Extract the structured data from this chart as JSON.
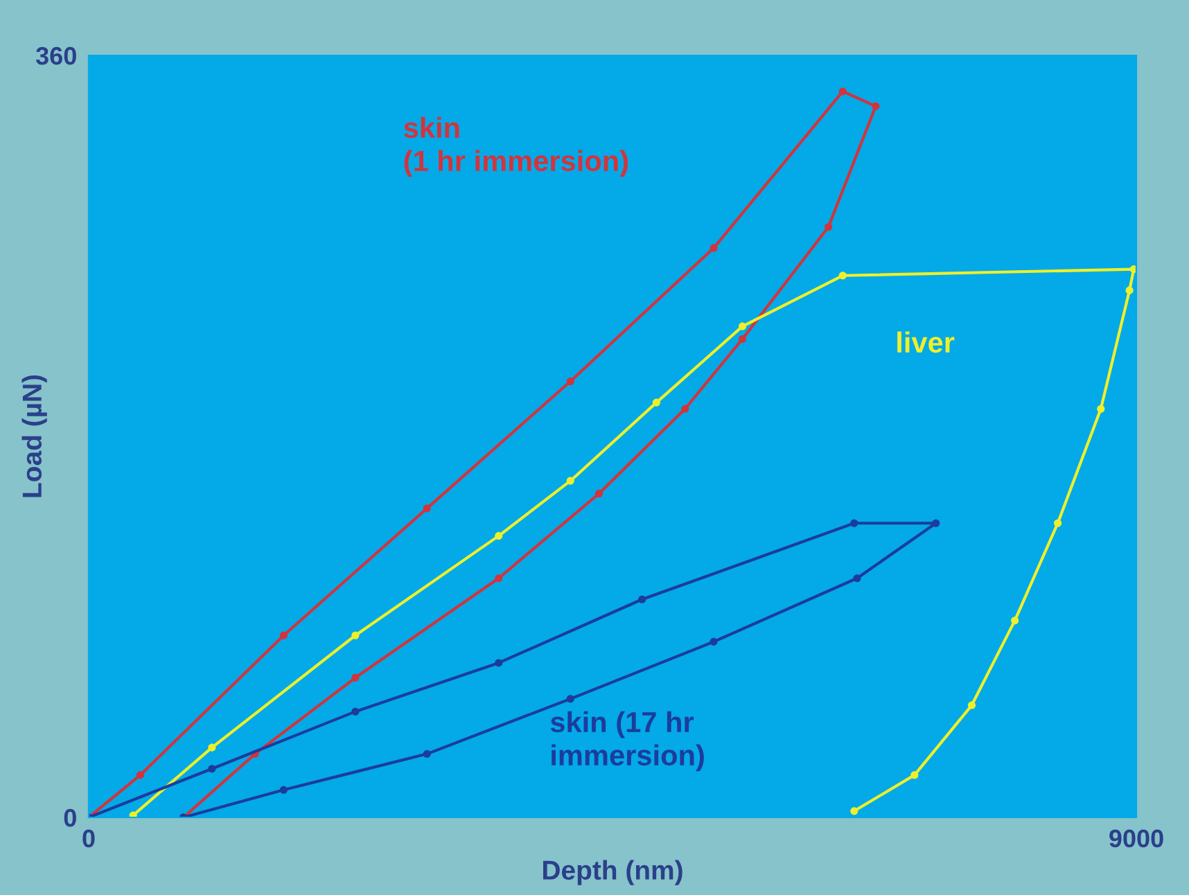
{
  "chart_data": {
    "type": "line",
    "xlabel": "Depth (nm)",
    "ylabel": "Load (µN)",
    "xlim": [
      0,
      9000
    ],
    "ylim": [
      0,
      360
    ],
    "xticks": [
      0,
      9000
    ],
    "yticks": [
      0,
      360
    ],
    "grid": false,
    "legend": false,
    "marker": "circle",
    "line_style": "solid",
    "series": [
      {
        "name": "skin\n(1 hr immersion)",
        "color": "#d2343c",
        "x": [
          0,
          443,
          1675,
          2906,
          4138,
          5369,
          6478,
          6761,
          6355,
          5616,
          5123,
          4384,
          3522,
          2291,
          1429,
          813
        ],
        "values": [
          0,
          20,
          86,
          146,
          206,
          269,
          343,
          336,
          279,
          226,
          193,
          153,
          113,
          66,
          30,
          0
        ]
      },
      {
        "name": "liver",
        "color": "#eef02a",
        "x": [
          382,
          1059,
          2291,
          3522,
          4138,
          4877,
          5616,
          6478,
          8978,
          8941,
          8695,
          8325,
          7956,
          7586,
          7094,
          6576
        ],
        "values": [
          1,
          33,
          86,
          133,
          159,
          196,
          232,
          256,
          259,
          249,
          193,
          139,
          93,
          53,
          20,
          3
        ]
      },
      {
        "name": "skin (17 hr\nimmersion)",
        "color": "#1c3c9c",
        "x": [
          0,
          1059,
          2291,
          3522,
          4754,
          6576,
          7278,
          6601,
          5369,
          4138,
          2906,
          1675,
          813
        ],
        "values": [
          0,
          23,
          50,
          73,
          103,
          139,
          139,
          113,
          83,
          56,
          30,
          13,
          0
        ]
      }
    ]
  }
}
